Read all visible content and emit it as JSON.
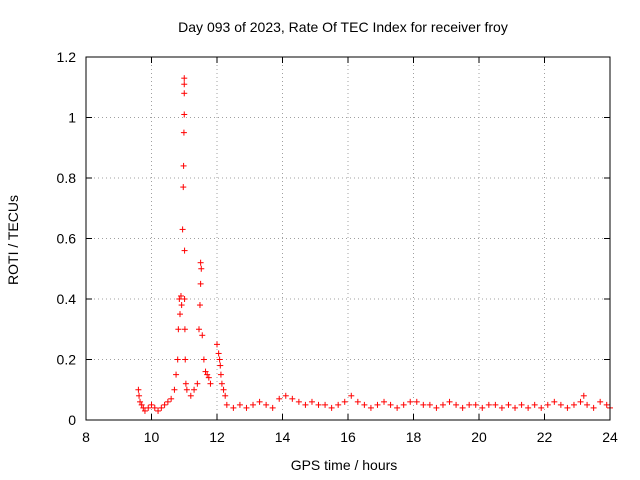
{
  "chart_data": {
    "type": "scatter",
    "title": "Day 093 of 2023, Rate Of TEC Index for receiver froy",
    "xlabel": "GPS time / hours",
    "ylabel": "ROTI / TECUs",
    "xlim": [
      8,
      24
    ],
    "ylim": [
      0,
      1.2
    ],
    "xticks": [
      8,
      10,
      12,
      14,
      16,
      18,
      20,
      22,
      24
    ],
    "xtick_labels": [
      "8",
      "10",
      "12",
      "14",
      "16",
      "18",
      "20",
      "22",
      "24"
    ],
    "yticks": [
      0,
      0.2,
      0.4,
      0.6,
      0.8,
      1.0,
      1.2
    ],
    "ytick_labels": [
      "0",
      "0.2",
      "0.4",
      "0.6",
      "0.8",
      "1",
      "1.2"
    ],
    "grid": true,
    "marker": "plus",
    "color": "#ff0000",
    "series": [
      {
        "x": [
          9.6,
          9.62,
          9.65,
          9.7,
          9.75,
          9.8,
          9.9,
          10.0,
          10.1,
          10.2,
          10.3,
          10.4,
          10.5,
          10.6,
          10.7,
          10.75,
          10.8,
          10.82,
          10.85,
          10.87,
          10.9,
          10.92,
          10.95,
          10.97,
          10.98,
          10.99,
          11.0,
          11.0,
          11.0,
          11.0,
          11.01,
          11.01,
          11.02,
          11.03,
          11.05,
          11.08,
          11.2,
          11.3,
          11.4,
          11.45,
          11.48,
          11.5,
          11.5,
          11.52,
          11.55,
          11.6,
          11.65,
          11.7,
          11.75,
          11.8,
          12.0,
          12.05,
          12.08,
          12.1,
          12.12,
          12.15,
          12.2,
          12.25,
          12.3,
          12.5,
          12.7,
          12.9,
          13.1,
          13.3,
          13.5,
          13.7,
          13.9,
          14.1,
          14.3,
          14.5,
          14.7,
          14.9,
          15.1,
          15.3,
          15.5,
          15.7,
          15.9,
          16.1,
          16.3,
          16.5,
          16.7,
          16.9,
          17.1,
          17.3,
          17.5,
          17.7,
          17.9,
          18.1,
          18.3,
          18.5,
          18.7,
          18.9,
          19.1,
          19.3,
          19.5,
          19.7,
          19.9,
          20.1,
          20.3,
          20.5,
          20.7,
          20.9,
          21.1,
          21.3,
          21.5,
          21.7,
          21.9,
          22.1,
          22.3,
          22.5,
          22.7,
          22.9,
          23.1,
          23.2,
          23.3,
          23.5,
          23.7,
          23.9,
          24.0
        ],
        "y": [
          0.1,
          0.08,
          0.06,
          0.05,
          0.04,
          0.03,
          0.04,
          0.05,
          0.04,
          0.03,
          0.04,
          0.05,
          0.06,
          0.07,
          0.1,
          0.15,
          0.2,
          0.3,
          0.4,
          0.35,
          0.41,
          0.38,
          0.63,
          0.77,
          0.84,
          0.95,
          1.01,
          1.08,
          1.11,
          1.13,
          0.56,
          0.4,
          0.3,
          0.2,
          0.12,
          0.1,
          0.08,
          0.1,
          0.12,
          0.3,
          0.38,
          0.45,
          0.52,
          0.5,
          0.28,
          0.2,
          0.16,
          0.15,
          0.14,
          0.12,
          0.25,
          0.22,
          0.2,
          0.18,
          0.15,
          0.12,
          0.1,
          0.08,
          0.05,
          0.04,
          0.05,
          0.04,
          0.05,
          0.06,
          0.05,
          0.04,
          0.07,
          0.08,
          0.07,
          0.06,
          0.05,
          0.06,
          0.05,
          0.05,
          0.04,
          0.05,
          0.06,
          0.08,
          0.06,
          0.05,
          0.04,
          0.05,
          0.06,
          0.05,
          0.04,
          0.05,
          0.06,
          0.06,
          0.05,
          0.05,
          0.04,
          0.05,
          0.06,
          0.05,
          0.04,
          0.05,
          0.05,
          0.04,
          0.05,
          0.05,
          0.04,
          0.05,
          0.04,
          0.05,
          0.04,
          0.05,
          0.04,
          0.05,
          0.06,
          0.05,
          0.04,
          0.05,
          0.06,
          0.08,
          0.05,
          0.04,
          0.06,
          0.05,
          0.04
        ]
      }
    ]
  }
}
